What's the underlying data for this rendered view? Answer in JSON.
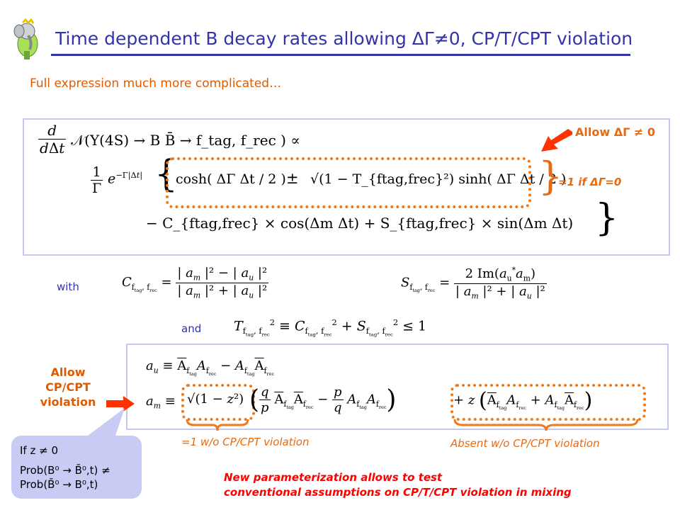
{
  "title": "Time dependent B decay rates allowing ΔΓ≠0, CP/T/CPT violation",
  "subtitle": "Full expression much more complicated…",
  "eq1": {
    "prefix": "d / dΔt",
    "rate": "𝒩(Υ(4S) → B B̄ → f_tag, f_rec ) ∝",
    "one_over_gamma": "1 / Γ",
    "exp": "e^{−Γ|Δt|}",
    "cosh": "cosh( ΔΓ Δt / 2 )",
    "pm": "±",
    "sqrt": "√(1 − T_{ftag,frec}²) sinh( ΔΓ Δt / 2 )",
    "line3": "− C_{ftag,frec} × cos(Δm Δt) + S_{ftag,frec} × sin(Δm Δt)"
  },
  "annotations": {
    "allow_dg": "Allow ΔΓ ≠ 0",
    "eq1_if_dg0": "=1 if ΔΓ=0",
    "with": "with",
    "and": "and",
    "allow_cpt": "Allow CP/CPT violation",
    "eq1_wo": "=1 w/o CP/CPT violation",
    "absent_wo": "Absent w/o CP/CPT violation",
    "new_param_1": "New parameterization allows to test",
    "new_param_2": "conventional assumptions on CP/T/CPT violation in mixing"
  },
  "callout": {
    "line1": "If z ≠ 0",
    "line2": "Prob(B⁰ → B̄⁰,t) ≠",
    "line3": "Prob(B̄⁰ → B⁰,t)"
  },
  "colors": {
    "title": "#3333aa",
    "accent": "#e05a00",
    "box": "#c5c9ef",
    "arrow": "#ff3300",
    "callout": "#c8ccf4"
  }
}
